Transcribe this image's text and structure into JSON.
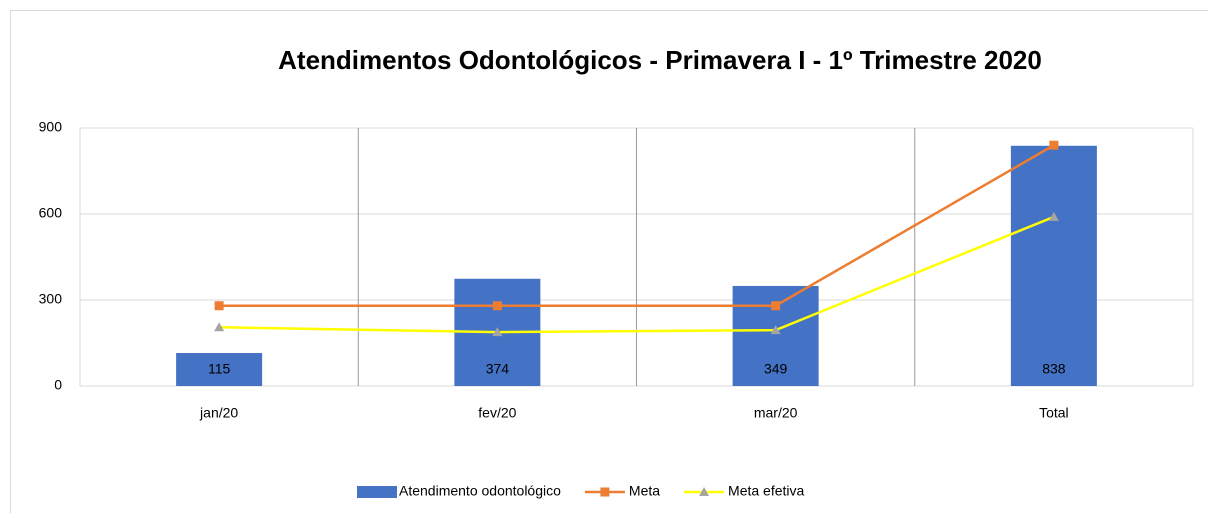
{
  "chart_data": {
    "type": "bar",
    "title": "Atendimentos Odontológicos - Primavera I - 1º Trimestre 2020",
    "categories": [
      "jan/20",
      "fev/20",
      "mar/20",
      "Total"
    ],
    "series": [
      {
        "name": "Atendimento odontológico",
        "type": "bar",
        "color": "#4472c4",
        "values": [
          115,
          374,
          349,
          838
        ]
      },
      {
        "name": "Meta",
        "type": "line",
        "marker": "square",
        "color": "#ed7d31",
        "values": [
          280,
          280,
          280,
          840
        ]
      },
      {
        "name": "Meta efetiva",
        "type": "line",
        "marker": "triangle",
        "color": "#ffff00",
        "marker_color": "#a5a5a5",
        "values": [
          205,
          188,
          195,
          590
        ]
      }
    ],
    "ylim": [
      0,
      900
    ],
    "yticks": [
      0,
      300,
      600,
      900
    ],
    "grid": true,
    "legend": "bottom"
  }
}
